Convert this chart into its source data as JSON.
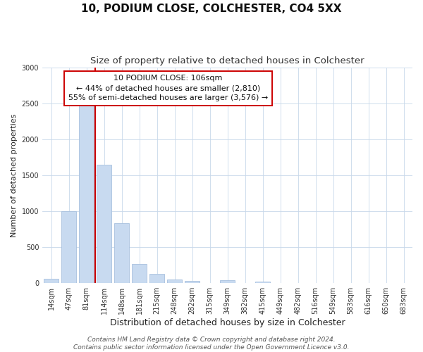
{
  "title": "10, PODIUM CLOSE, COLCHESTER, CO4 5XX",
  "subtitle": "Size of property relative to detached houses in Colchester",
  "xlabel": "Distribution of detached houses by size in Colchester",
  "ylabel": "Number of detached properties",
  "footer_lines": [
    "Contains HM Land Registry data © Crown copyright and database right 2024.",
    "Contains public sector information licensed under the Open Government Licence v3.0."
  ],
  "bar_labels": [
    "14sqm",
    "47sqm",
    "81sqm",
    "114sqm",
    "148sqm",
    "181sqm",
    "215sqm",
    "248sqm",
    "282sqm",
    "315sqm",
    "349sqm",
    "382sqm",
    "415sqm",
    "449sqm",
    "482sqm",
    "516sqm",
    "549sqm",
    "583sqm",
    "616sqm",
    "650sqm",
    "683sqm"
  ],
  "bar_values": [
    60,
    1000,
    2470,
    1650,
    830,
    270,
    130,
    55,
    35,
    0,
    40,
    0,
    20,
    0,
    0,
    0,
    0,
    0,
    0,
    0,
    0
  ],
  "bar_color": "#c8daf0",
  "bar_edgecolor": "#a8c0de",
  "vline_color": "#cc0000",
  "vline_xindex": 2.5,
  "ylim": [
    0,
    3000
  ],
  "yticks": [
    0,
    500,
    1000,
    1500,
    2000,
    2500,
    3000
  ],
  "annotation_line1": "10 PODIUM CLOSE: 106sqm",
  "annotation_line2": "← 44% of detached houses are smaller (2,810)",
  "annotation_line3": "55% of semi-detached houses are larger (3,576) →",
  "annotation_box_edgecolor": "#cc0000",
  "annotation_box_facecolor": "#ffffff",
  "bg_color": "#ffffff",
  "grid_color": "#c8d8ea",
  "title_fontsize": 11,
  "subtitle_fontsize": 9.5,
  "xlabel_fontsize": 9,
  "ylabel_fontsize": 8,
  "tick_fontsize": 7,
  "annotation_fontsize": 8,
  "footer_fontsize": 6.5
}
